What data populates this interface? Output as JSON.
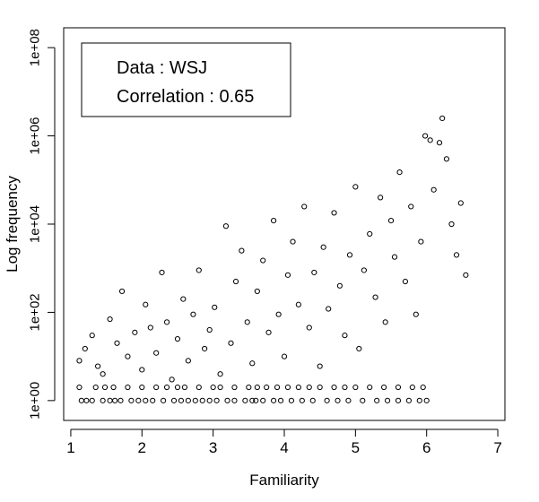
{
  "chart_data": {
    "type": "scatter",
    "title": "",
    "xlabel": "Familiarity",
    "ylabel": "Log frequency",
    "xlim": [
      0.9,
      7.1
    ],
    "ylim_log10": [
      -0.45,
      8.45
    ],
    "y_scale": "log",
    "x_ticks": [
      1,
      2,
      3,
      4,
      5,
      6,
      7
    ],
    "x_tick_labels": [
      "1",
      "2",
      "3",
      "4",
      "5",
      "6",
      "7"
    ],
    "y_ticks_log10": [
      0,
      2,
      4,
      6,
      8
    ],
    "y_tick_labels": [
      "1e+00",
      "1e+02",
      "1e+04",
      "1e+06",
      "1e+08"
    ],
    "grid": false,
    "marker": "open-circle",
    "marker_color": "#000000",
    "legend": {
      "position": "top-left",
      "lines": [
        "Data : WSJ",
        "Correlation : 0.65"
      ]
    },
    "series": [
      {
        "name": "",
        "points": [
          [
            1.15,
            1
          ],
          [
            1.22,
            1
          ],
          [
            1.3,
            1
          ],
          [
            1.45,
            1
          ],
          [
            1.55,
            1
          ],
          [
            1.62,
            1
          ],
          [
            1.7,
            1
          ],
          [
            1.85,
            1
          ],
          [
            1.95,
            1
          ],
          [
            2.05,
            1
          ],
          [
            2.15,
            1
          ],
          [
            2.3,
            1
          ],
          [
            2.45,
            1
          ],
          [
            2.55,
            1
          ],
          [
            2.65,
            1
          ],
          [
            2.75,
            1
          ],
          [
            2.85,
            1
          ],
          [
            2.95,
            1
          ],
          [
            3.05,
            1
          ],
          [
            3.2,
            1
          ],
          [
            3.3,
            1
          ],
          [
            3.45,
            1
          ],
          [
            3.55,
            1
          ],
          [
            3.6,
            1
          ],
          [
            3.7,
            1
          ],
          [
            3.85,
            1
          ],
          [
            3.95,
            1
          ],
          [
            4.1,
            1
          ],
          [
            4.25,
            1
          ],
          [
            4.4,
            1
          ],
          [
            4.6,
            1
          ],
          [
            4.75,
            1
          ],
          [
            4.9,
            1
          ],
          [
            5.1,
            1
          ],
          [
            5.3,
            1
          ],
          [
            5.45,
            1
          ],
          [
            5.6,
            1
          ],
          [
            5.75,
            1
          ],
          [
            5.9,
            1
          ],
          [
            6.0,
            1
          ],
          [
            1.12,
            2
          ],
          [
            1.35,
            2
          ],
          [
            1.48,
            2
          ],
          [
            1.6,
            2
          ],
          [
            1.8,
            2
          ],
          [
            2.0,
            2
          ],
          [
            2.2,
            2
          ],
          [
            2.35,
            2
          ],
          [
            2.5,
            2
          ],
          [
            2.6,
            2
          ],
          [
            2.8,
            2
          ],
          [
            3.0,
            2
          ],
          [
            3.1,
            2
          ],
          [
            3.3,
            2
          ],
          [
            3.5,
            2
          ],
          [
            3.62,
            2
          ],
          [
            3.75,
            2
          ],
          [
            3.9,
            2
          ],
          [
            4.05,
            2
          ],
          [
            4.2,
            2
          ],
          [
            4.35,
            2
          ],
          [
            4.5,
            2
          ],
          [
            4.7,
            2
          ],
          [
            4.85,
            2
          ],
          [
            5.0,
            2
          ],
          [
            5.2,
            2
          ],
          [
            5.4,
            2
          ],
          [
            5.6,
            2
          ],
          [
            5.8,
            2
          ],
          [
            5.95,
            2
          ],
          [
            1.12,
            8
          ],
          [
            1.2,
            15
          ],
          [
            1.3,
            30
          ],
          [
            1.38,
            6
          ],
          [
            1.45,
            4
          ],
          [
            1.55,
            70
          ],
          [
            1.65,
            20
          ],
          [
            1.72,
            300
          ],
          [
            1.8,
            10
          ],
          [
            1.9,
            35
          ],
          [
            2.0,
            5
          ],
          [
            2.05,
            150
          ],
          [
            2.12,
            45
          ],
          [
            2.2,
            12
          ],
          [
            2.28,
            800
          ],
          [
            2.35,
            60
          ],
          [
            2.42,
            3
          ],
          [
            2.5,
            25
          ],
          [
            2.58,
            200
          ],
          [
            2.65,
            8
          ],
          [
            2.72,
            90
          ],
          [
            2.8,
            900
          ],
          [
            2.88,
            15
          ],
          [
            2.95,
            40
          ],
          [
            3.02,
            130
          ],
          [
            3.1,
            4
          ],
          [
            3.18,
            9000
          ],
          [
            3.25,
            20
          ],
          [
            3.32,
            500
          ],
          [
            3.4,
            2500
          ],
          [
            3.48,
            60
          ],
          [
            3.55,
            7
          ],
          [
            3.62,
            300
          ],
          [
            3.7,
            1500
          ],
          [
            3.78,
            35
          ],
          [
            3.85,
            12000
          ],
          [
            3.92,
            90
          ],
          [
            4.0,
            10
          ],
          [
            4.05,
            700
          ],
          [
            4.12,
            4000
          ],
          [
            4.2,
            150
          ],
          [
            4.28,
            25000
          ],
          [
            4.35,
            45
          ],
          [
            4.42,
            800
          ],
          [
            4.5,
            6
          ],
          [
            4.55,
            3000
          ],
          [
            4.62,
            120
          ],
          [
            4.7,
            18000
          ],
          [
            4.78,
            400
          ],
          [
            4.85,
            30
          ],
          [
            4.92,
            2000
          ],
          [
            5.0,
            70000
          ],
          [
            5.05,
            15
          ],
          [
            5.12,
            900
          ],
          [
            5.2,
            6000
          ],
          [
            5.28,
            220
          ],
          [
            5.35,
            40000
          ],
          [
            5.42,
            60
          ],
          [
            5.5,
            12000
          ],
          [
            5.55,
            1800
          ],
          [
            5.62,
            150000
          ],
          [
            5.7,
            500
          ],
          [
            5.78,
            25000
          ],
          [
            5.85,
            90
          ],
          [
            5.92,
            4000
          ],
          [
            5.98,
            1000000
          ],
          [
            6.05,
            800000
          ],
          [
            6.1,
            60000
          ],
          [
            6.18,
            700000
          ],
          [
            6.22,
            2500000
          ],
          [
            6.28,
            300000
          ],
          [
            6.35,
            10000
          ],
          [
            6.42,
            2000
          ],
          [
            6.48,
            30000
          ],
          [
            6.55,
            700
          ]
        ]
      }
    ]
  }
}
